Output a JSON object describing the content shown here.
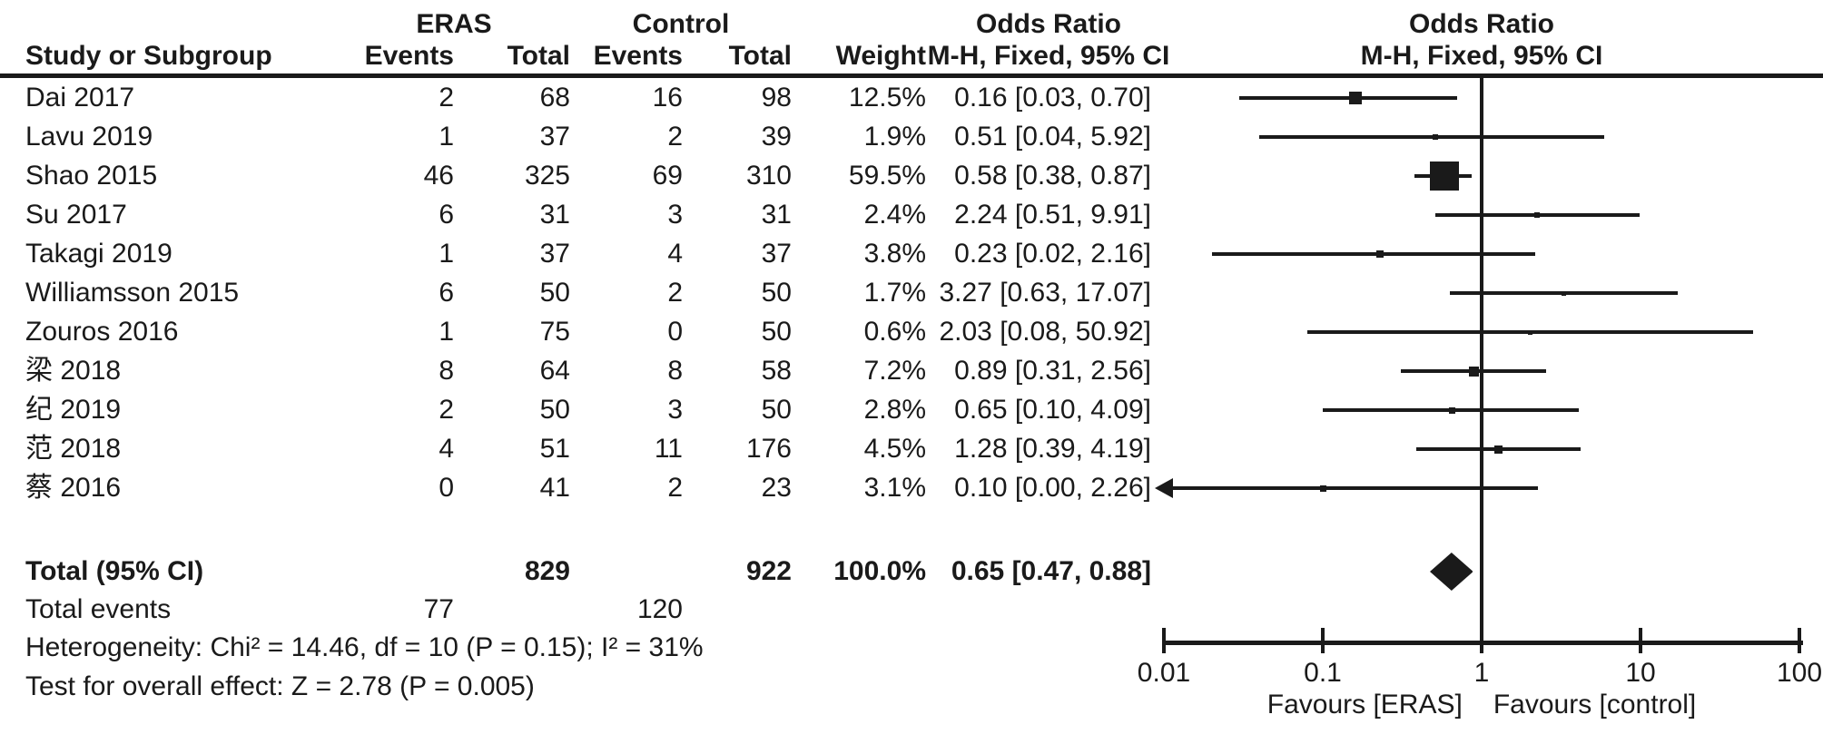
{
  "header": {
    "group_eras": "ERAS",
    "group_control": "Control",
    "or_left": "Odds Ratio",
    "or_right": "Odds Ratio",
    "col_study": "Study or Subgroup",
    "col_events": "Events",
    "col_total": "Total",
    "col_weight": "Weight",
    "mh_left": "M-H, Fixed, 95% CI",
    "mh_right": "M-H, Fixed, 95% CI"
  },
  "totals": {
    "label": "Total (95% CI)",
    "eras_total": "829",
    "control_total": "922",
    "weight": "100.0%",
    "or_text": "0.65 [0.47, 0.88]",
    "events_label": "Total events",
    "eras_events": "77",
    "control_events": "120",
    "heterogeneity": "Heterogeneity: Chi² = 14.46, df = 10 (P = 0.15); I² = 31%",
    "overall_effect": "Test for overall effect: Z = 2.78 (P = 0.005)"
  },
  "axis": {
    "tick_labels": [
      "0.01",
      "0.1",
      "1",
      "10",
      "100"
    ],
    "favours_left": "Favours [ERAS]",
    "favours_right": "Favours [control]"
  },
  "colors": {
    "ink": "#1a1a1a",
    "background": "#ffffff"
  },
  "chart_data": {
    "type": "scatter",
    "subtype": "forest-plot",
    "effect_label": "Odds Ratio, M-H, Fixed, 95% CI",
    "x_scale": "log",
    "x_range": [
      0.01,
      100
    ],
    "x_ticks": [
      0.01,
      0.1,
      1,
      10,
      100
    ],
    "no_effect_line": 1,
    "studies": [
      {
        "name": "Dai 2017",
        "eras_events": 2,
        "eras_total": 68,
        "control_events": 16,
        "control_total": 98,
        "weight": "12.5%",
        "weight_value": 12.5,
        "or_text": "0.16 [0.03, 0.70]",
        "or": 0.16,
        "ci_low": 0.03,
        "ci_high": 0.7,
        "arrow_low": false
      },
      {
        "name": "Lavu 2019",
        "eras_events": 1,
        "eras_total": 37,
        "control_events": 2,
        "control_total": 39,
        "weight": "1.9%",
        "weight_value": 1.9,
        "or_text": "0.51 [0.04, 5.92]",
        "or": 0.51,
        "ci_low": 0.04,
        "ci_high": 5.92,
        "arrow_low": false
      },
      {
        "name": "Shao 2015",
        "eras_events": 46,
        "eras_total": 325,
        "control_events": 69,
        "control_total": 310,
        "weight": "59.5%",
        "weight_value": 59.5,
        "or_text": "0.58 [0.38, 0.87]",
        "or": 0.58,
        "ci_low": 0.38,
        "ci_high": 0.87,
        "arrow_low": false
      },
      {
        "name": "Su 2017",
        "eras_events": 6,
        "eras_total": 31,
        "control_events": 3,
        "control_total": 31,
        "weight": "2.4%",
        "weight_value": 2.4,
        "or_text": "2.24 [0.51, 9.91]",
        "or": 2.24,
        "ci_low": 0.51,
        "ci_high": 9.91,
        "arrow_low": false
      },
      {
        "name": "Takagi 2019",
        "eras_events": 1,
        "eras_total": 37,
        "control_events": 4,
        "control_total": 37,
        "weight": "3.8%",
        "weight_value": 3.8,
        "or_text": "0.23 [0.02, 2.16]",
        "or": 0.23,
        "ci_low": 0.02,
        "ci_high": 2.16,
        "arrow_low": false
      },
      {
        "name": "Williamsson 2015",
        "eras_events": 6,
        "eras_total": 50,
        "control_events": 2,
        "control_total": 50,
        "weight": "1.7%",
        "weight_value": 1.7,
        "or_text": "3.27 [0.63, 17.07]",
        "or": 3.27,
        "ci_low": 0.63,
        "ci_high": 17.07,
        "arrow_low": false
      },
      {
        "name": "Zouros 2016",
        "eras_events": 1,
        "eras_total": 75,
        "control_events": 0,
        "control_total": 50,
        "weight": "0.6%",
        "weight_value": 0.6,
        "or_text": "2.03 [0.08, 50.92]",
        "or": 2.03,
        "ci_low": 0.08,
        "ci_high": 50.92,
        "arrow_low": false
      },
      {
        "name": "梁 2018",
        "eras_events": 8,
        "eras_total": 64,
        "control_events": 8,
        "control_total": 58,
        "weight": "7.2%",
        "weight_value": 7.2,
        "or_text": "0.89 [0.31, 2.56]",
        "or": 0.89,
        "ci_low": 0.31,
        "ci_high": 2.56,
        "arrow_low": false
      },
      {
        "name": "纪 2019",
        "eras_events": 2,
        "eras_total": 50,
        "control_events": 3,
        "control_total": 50,
        "weight": "2.8%",
        "weight_value": 2.8,
        "or_text": "0.65 [0.10, 4.09]",
        "or": 0.65,
        "ci_low": 0.1,
        "ci_high": 4.09,
        "arrow_low": false
      },
      {
        "name": "范 2018",
        "eras_events": 4,
        "eras_total": 51,
        "control_events": 11,
        "control_total": 176,
        "weight": "4.5%",
        "weight_value": 4.5,
        "or_text": "1.28 [0.39, 4.19]",
        "or": 1.28,
        "ci_low": 0.39,
        "ci_high": 4.19,
        "arrow_low": false
      },
      {
        "name": "蔡 2016",
        "eras_events": 0,
        "eras_total": 41,
        "control_events": 2,
        "control_total": 23,
        "weight": "3.1%",
        "weight_value": 3.1,
        "or_text": "0.10 [0.00, 2.26]",
        "or": 0.1,
        "ci_low": 0.0,
        "ci_high": 2.26,
        "arrow_low": true
      }
    ],
    "total": {
      "or": 0.65,
      "ci_low": 0.47,
      "ci_high": 0.88
    }
  }
}
